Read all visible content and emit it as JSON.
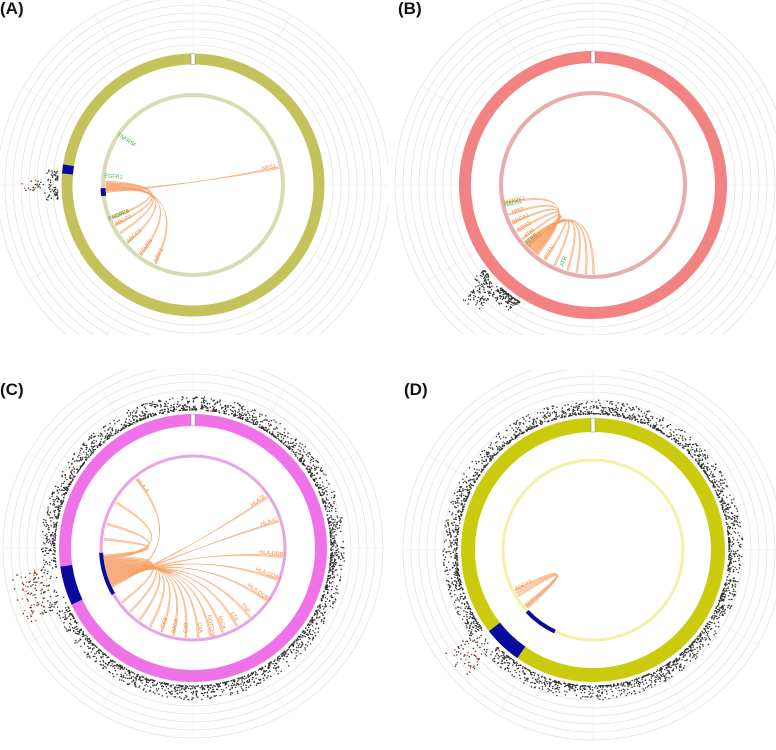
{
  "figure": {
    "panels": [
      {
        "id": "A",
        "label": "(A)"
      },
      {
        "id": "B",
        "label": "(B)"
      },
      {
        "id": "C",
        "label": "(C)"
      },
      {
        "id": "D",
        "label": "(D)"
      }
    ]
  },
  "chart_data": [
    {
      "type": "circos",
      "panel": "(A)",
      "title": "",
      "outer_ring_color": "#c4c25b",
      "inner_ring_color": "#d8dbb4",
      "highlight_color": "#0a0aa0",
      "link_color": "#f7a064",
      "outer_highlight": {
        "start_deg": 275,
        "end_deg": 279
      },
      "inner_highlight": {
        "start_deg": 263,
        "end_deg": 268
      },
      "manhattan": {
        "start_deg": 264,
        "end_deg": 276,
        "peak_start_deg": 268,
        "peak_end_deg": 272,
        "density": "sparse"
      },
      "links": [
        {
          "from_deg": 265,
          "to_deg": 78
        },
        {
          "from_deg": 266,
          "to_deg": 242
        },
        {
          "from_deg": 267,
          "to_deg": 228
        },
        {
          "from_deg": 268,
          "to_deg": 216
        },
        {
          "from_deg": 269,
          "to_deg": 205
        },
        {
          "from_deg": 270,
          "to_deg": 247
        },
        {
          "from_deg": 271,
          "to_deg": 236
        }
      ],
      "gene_labels_orange": [
        "NFS1",
        "ABCC1",
        "ABCC2",
        "PSMB6",
        "NRF2",
        "GSTP1"
      ],
      "gene_labels_green": [
        "PRDM16",
        "EGFR1",
        "TNFRSF"
      ]
    },
    {
      "type": "circos",
      "panel": "(B)",
      "title": "",
      "outer_ring_color": "#f38282",
      "inner_ring_color": "#e7adad",
      "highlight_color": "#0a0aa0",
      "link_color": "#f7a064",
      "manhattan": {
        "start_deg": 212,
        "end_deg": 232,
        "peak_start_deg": 222,
        "peak_end_deg": 229,
        "density": "medium"
      },
      "links": [
        {
          "from_deg": 218,
          "to_deg": 258
        },
        {
          "from_deg": 219,
          "to_deg": 250
        },
        {
          "from_deg": 220,
          "to_deg": 244
        },
        {
          "from_deg": 221,
          "to_deg": 238
        },
        {
          "from_deg": 222,
          "to_deg": 232
        },
        {
          "from_deg": 223,
          "to_deg": 226
        },
        {
          "from_deg": 224,
          "to_deg": 212
        },
        {
          "from_deg": 225,
          "to_deg": 205
        },
        {
          "from_deg": 226,
          "to_deg": 196
        },
        {
          "from_deg": 227,
          "to_deg": 190
        },
        {
          "from_deg": 228,
          "to_deg": 184
        },
        {
          "from_deg": 229,
          "to_deg": 179
        }
      ],
      "gene_labels_orange": [
        "MAP3K1",
        "TP53",
        "BRCA1",
        "KRAS",
        "ATM",
        "CHEK2",
        "PTEN"
      ],
      "gene_labels_green": [
        "ATR",
        "ATRX",
        "RAD51"
      ]
    },
    {
      "type": "circos",
      "panel": "(C)",
      "title": "",
      "outer_ring_color": "#f072e8",
      "inner_ring_color": "#e8a5e4",
      "highlight_color": "#0a0aa0",
      "link_color": "#f7a064",
      "outer_highlight": {
        "start_deg": 245,
        "end_deg": 262
      },
      "inner_highlight": {
        "start_deg": 240,
        "end_deg": 267
      },
      "manhattan": {
        "start_deg": 0,
        "end_deg": 360,
        "peak_start_deg": 245,
        "peak_end_deg": 262,
        "density": "dense"
      },
      "links": [
        {
          "from_deg": 244,
          "to_deg": 320
        },
        {
          "from_deg": 245,
          "to_deg": 55
        },
        {
          "from_deg": 246,
          "to_deg": 72
        },
        {
          "from_deg": 247,
          "to_deg": 95
        },
        {
          "from_deg": 248,
          "to_deg": 110
        },
        {
          "from_deg": 249,
          "to_deg": 125
        },
        {
          "from_deg": 250,
          "to_deg": 140
        },
        {
          "from_deg": 251,
          "to_deg": 150
        },
        {
          "from_deg": 252,
          "to_deg": 160
        },
        {
          "from_deg": 253,
          "to_deg": 168
        },
        {
          "from_deg": 254,
          "to_deg": 176
        },
        {
          "from_deg": 255,
          "to_deg": 184
        },
        {
          "from_deg": 256,
          "to_deg": 192
        },
        {
          "from_deg": 257,
          "to_deg": 200
        },
        {
          "from_deg": 258,
          "to_deg": 208
        },
        {
          "from_deg": 259,
          "to_deg": 216
        },
        {
          "from_deg": 260,
          "to_deg": 224
        },
        {
          "from_deg": 261,
          "to_deg": 232
        },
        {
          "from_deg": 262,
          "to_deg": 300
        },
        {
          "from_deg": 263,
          "to_deg": 285
        },
        {
          "from_deg": 264,
          "to_deg": 275
        }
      ],
      "gene_labels_orange": [
        "HLA-A",
        "HLA-B",
        "HLA-C",
        "HLA-DRB1",
        "HLA-DQA1",
        "HLA-DQB1",
        "TNF",
        "LTA",
        "MICA",
        "NOTCH4",
        "C4A",
        "C4B",
        "BAG6",
        "CFB"
      ],
      "gene_labels_green": []
    },
    {
      "type": "circos",
      "panel": "(D)",
      "title": "",
      "outer_ring_color": "#cbcb0e",
      "inner_ring_color": "#f3f0a8",
      "highlight_color": "#0a0aa0",
      "link_color": "#f7a064",
      "outer_highlight": {
        "start_deg": 215,
        "end_deg": 232
      },
      "inner_highlight": {
        "start_deg": 205,
        "end_deg": 227
      },
      "manhattan": {
        "start_deg": 0,
        "end_deg": 360,
        "peak_start_deg": 225,
        "peak_end_deg": 235,
        "density": "dense"
      },
      "links": [
        {
          "from_deg": 228,
          "to_deg": 242
        },
        {
          "from_deg": 229,
          "to_deg": 240
        },
        {
          "from_deg": 230,
          "to_deg": 238
        }
      ],
      "gene_labels_orange": [
        "ADCY3"
      ],
      "gene_labels_green": []
    }
  ]
}
